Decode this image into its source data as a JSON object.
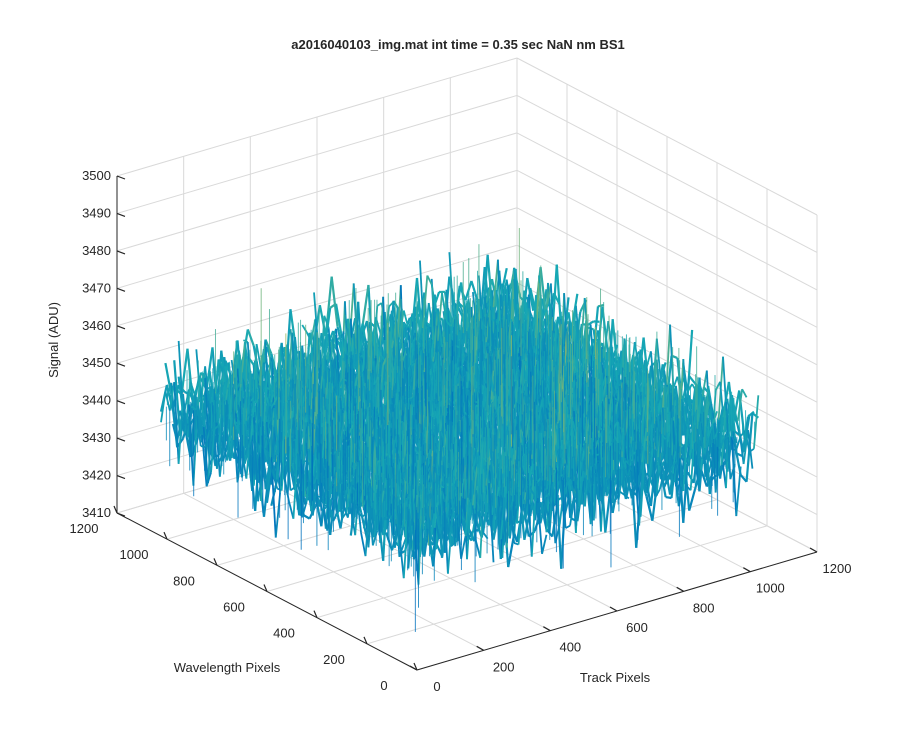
{
  "chart_data": {
    "type": "surface",
    "title": "a2016040103_img.mat int time = 0.35 sec  NaN nm BS1",
    "xlabel": "Track Pixels",
    "ylabel": "Wavelength Pixels",
    "zlabel": "Signal (ADU)",
    "xlim": [
      0,
      1200
    ],
    "ylim": [
      0,
      1200
    ],
    "zlim": [
      3410,
      3500
    ],
    "x_ticks": [
      0,
      200,
      400,
      600,
      800,
      1000,
      1200
    ],
    "y_ticks": [
      0,
      200,
      400,
      600,
      800,
      1000,
      1200
    ],
    "z_ticks": [
      3410,
      3420,
      3430,
      3440,
      3450,
      3460,
      3470,
      3480,
      3490,
      3500
    ],
    "x_tick_labels": [
      "0",
      "200",
      "400",
      "600",
      "800",
      "1000",
      "1200"
    ],
    "y_tick_labels": [
      "0",
      "200",
      "400",
      "600",
      "800",
      "1000",
      "1200"
    ],
    "z_tick_labels": [
      "3410",
      "3420",
      "3430",
      "3440",
      "3450",
      "3460",
      "3470",
      "3480",
      "3490",
      "3500"
    ],
    "surface": {
      "x_range": [
        0,
        1024
      ],
      "y_range": [
        0,
        1024
      ],
      "z_mean": 3445,
      "z_spread": [
        3420,
        3488
      ]
    },
    "grid": true,
    "box": false,
    "colormap": "parula",
    "colors": {
      "low": "#0072bd",
      "mid": "#17a8b4",
      "high": "#d9c23a",
      "grid": "#d9d9d9",
      "axis": "#262626"
    }
  }
}
